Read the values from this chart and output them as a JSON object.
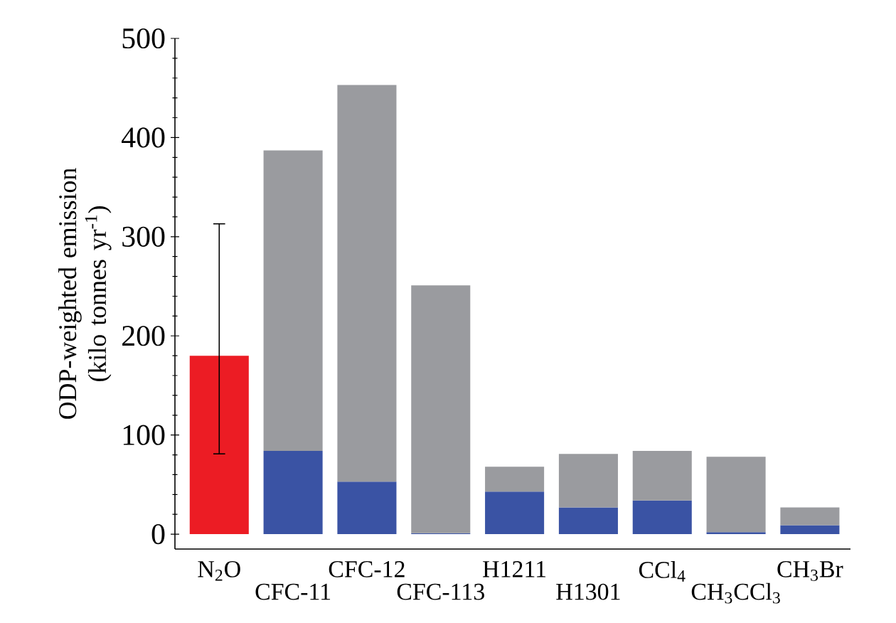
{
  "chart_data": {
    "type": "bar",
    "stacked": true,
    "ylabel": "ODP-weighted emission (kilo tonnes yr$^{-1}$)",
    "categories": [
      "N$_{2}$O",
      "CFC-11",
      "CFC-12",
      "CFC-113",
      "H1211",
      "H1301",
      "CCl$_{4}$",
      "CH$_{3}$CCl$_{3}$",
      "CH$_{3}$Br"
    ],
    "series": [
      {
        "colors": [
          "#ec1c24",
          "#3a53a4",
          "#3a53a4",
          "#3a53a4",
          "#3a53a4",
          "#3a53a4",
          "#3a53a4",
          "#3a53a4",
          "#3a53a4"
        ],
        "values": [
          180,
          84,
          53,
          1,
          43,
          27,
          34,
          2,
          9
        ],
        "errors": [
          [
            81,
            313
          ],
          null,
          null,
          null,
          null,
          null,
          null,
          null,
          null
        ]
      },
      {
        "color": "#9a9b9f",
        "values": [
          null,
          303,
          400,
          250,
          25,
          54,
          50,
          76,
          18
        ]
      }
    ],
    "ylim": [
      -15,
      500
    ],
    "yticks": [
      0,
      100,
      200,
      300,
      400,
      500
    ]
  }
}
